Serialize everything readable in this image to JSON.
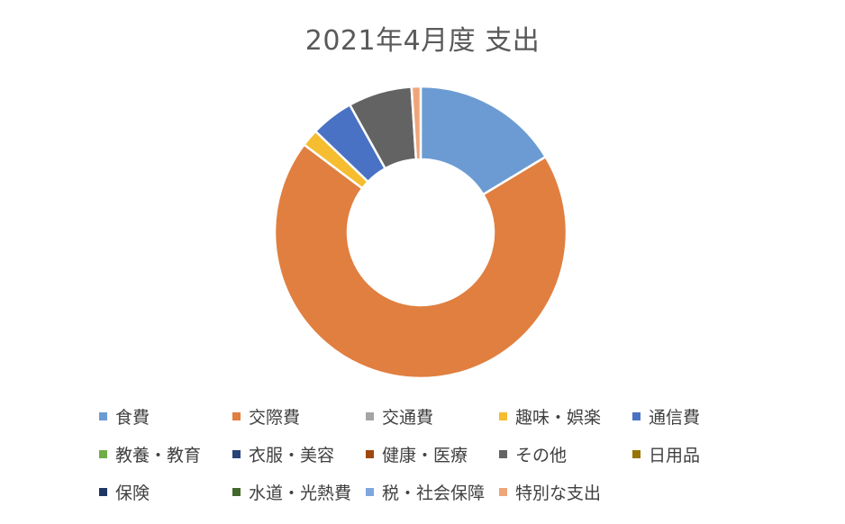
{
  "chart_data": {
    "type": "pie",
    "title": "2021年4月度 支出",
    "labels": [
      "食費",
      "交際費",
      "交通費",
      "趣味・娯楽",
      "通信費",
      "教養・教育",
      "衣服・美容",
      "健康・医療",
      "その他",
      "日用品",
      "保険",
      "水道・光熱費",
      "税・社会保障",
      "特別な支出"
    ],
    "values": [
      16.2,
      68.3,
      0,
      1.9,
      4.7,
      0,
      0,
      0,
      7.0,
      0,
      0,
      0,
      0,
      1.0
    ],
    "colors": [
      "#6b9bd2",
      "#e07f40",
      "#a5a5a5",
      "#f5bd2f",
      "#4a72c4",
      "#70ad47",
      "#264478",
      "#9e480e",
      "#636363",
      "#997300",
      "#1f3763",
      "#43682b",
      "#7fa7dd",
      "#efa57a"
    ],
    "hole": 0.5,
    "legend_position": "bottom"
  }
}
